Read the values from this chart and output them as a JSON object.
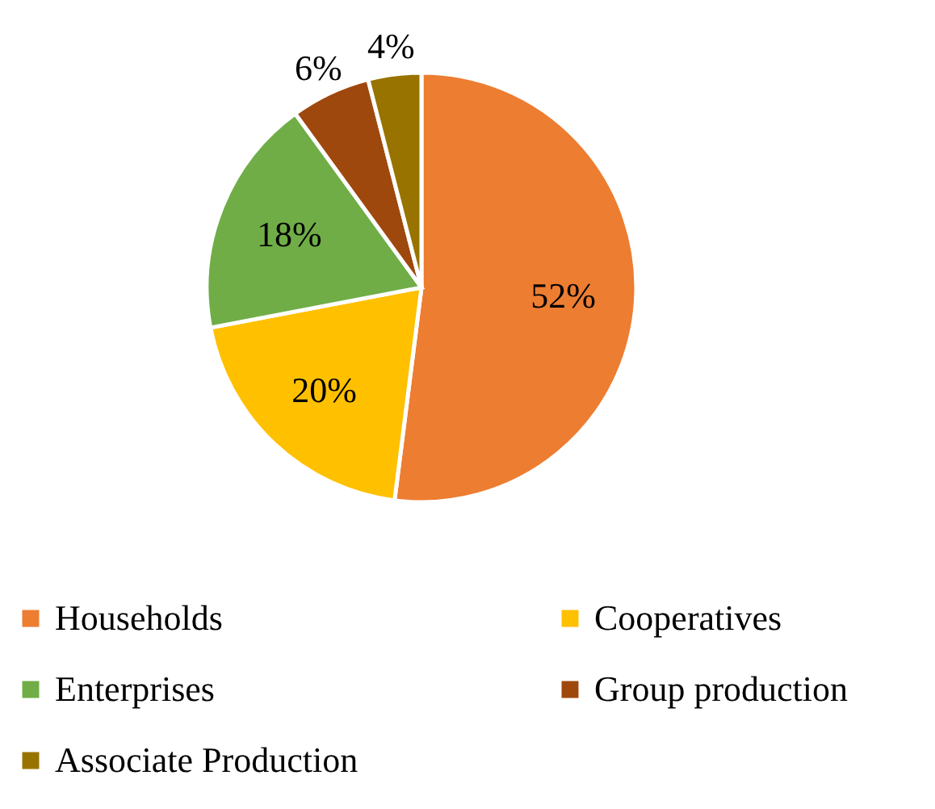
{
  "chart_data": {
    "type": "pie",
    "categories": [
      "Households",
      "Cooperatives",
      "Enterprises",
      "Group production",
      "Associate Production"
    ],
    "values": [
      52,
      20,
      18,
      6,
      4
    ],
    "colors": [
      "#ed7d31",
      "#ffc000",
      "#70ad47",
      "#9e480e",
      "#997300"
    ],
    "value_labels": [
      "52%",
      "20%",
      "18%",
      "6%",
      "4%"
    ],
    "legend": "bottom"
  }
}
